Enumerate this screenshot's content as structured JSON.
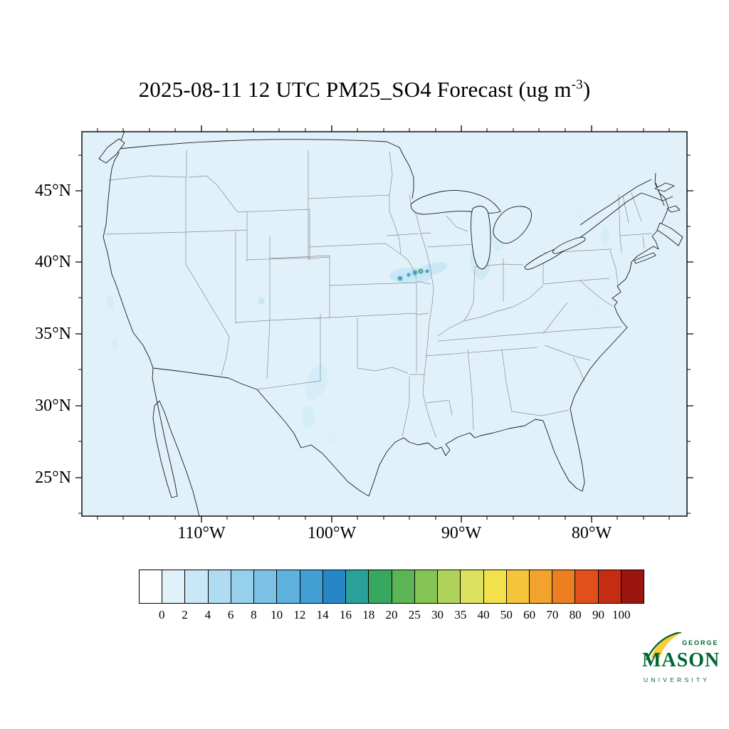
{
  "title": {
    "prefix": "2025-08-11 12 UTC PM25_SO4 Forecast (ug m",
    "superscript": "-3",
    "suffix": ")"
  },
  "axes": {
    "lat_labels": [
      "45°N",
      "40°N",
      "35°N",
      "30°N",
      "25°N"
    ],
    "lon_labels": [
      "110°W",
      "100°W",
      "90°W",
      "80°W"
    ]
  },
  "chart_data": {
    "type": "heatmap",
    "title": "2025-08-11 12 UTC PM25_SO4 Forecast (ug m-3)",
    "variable": "PM25_SO4",
    "units": "ug m-3",
    "forecast_datetime": "2025-08-11 12 UTC",
    "region": "Continental United States with state and national borders",
    "lat_tick_labels": [
      "45°N",
      "40°N",
      "35°N",
      "30°N",
      "25°N"
    ],
    "lon_tick_labels": [
      "110°W",
      "100°W",
      "90°W",
      "80°W"
    ],
    "legend_position": "bottom",
    "grid": false,
    "colorbar": {
      "tick_labels": [
        "0",
        "2",
        "4",
        "6",
        "8",
        "10",
        "12",
        "14",
        "16",
        "18",
        "20",
        "25",
        "30",
        "35",
        "40",
        "50",
        "60",
        "70",
        "80",
        "90",
        "100"
      ],
      "colors": [
        "#FFFFFF",
        "#E1F1FA",
        "#C9E7F6",
        "#B0DCF2",
        "#96D0ED",
        "#7BC2E6",
        "#5FB2DE",
        "#419FD4",
        "#2787C6",
        "#2AA09A",
        "#38A75F",
        "#5CB554",
        "#84C455",
        "#AFD35A",
        "#DCE25F",
        "#F2E14C",
        "#F4C43A",
        "#F1A32E",
        "#ED7F23",
        "#E0501A",
        "#C52D13",
        "#9A150E"
      ]
    },
    "field_summary": {
      "background_value_ug_m3": "0-2",
      "hotspots": [
        {
          "location": "southern Iowa / northern Missouri region (~39.5N, 93.5W)",
          "peak_value_ug_m3": "10-25"
        }
      ],
      "light_enhancements": [
        "eastern Iowa toward Lake Michigan (2-4)",
        "central Texas (2-4)",
        "scattered Northeast and coastal California (2-4)"
      ]
    }
  },
  "logo": {
    "top": "GEORGE",
    "middle": "MASON",
    "bottom": "UNIVERSITY"
  },
  "colors": {
    "map_background": "#E1F1FA",
    "coastline": "#1A1A1A",
    "state_border": "#8C8C8C",
    "logo_green": "#006633",
    "logo_gold": "#FFCC33"
  }
}
